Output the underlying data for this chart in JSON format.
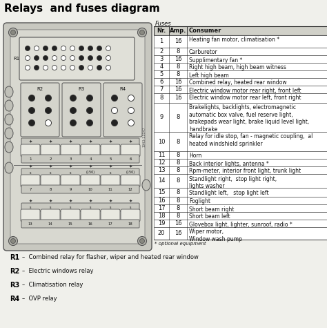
{
  "title": "Relays  and fuses diagram",
  "title_fontsize": 11,
  "bg_color": "#f0f0eb",
  "table_header": [
    "Nr.",
    "Amp.",
    "Consumer"
  ],
  "fuses_label": "Fuses",
  "fuse_rows": [
    [
      "1",
      "16",
      "Heating fan motor, climatisation *"
    ],
    [
      "2",
      "8",
      "Carburetor"
    ],
    [
      "3",
      "16",
      "Supplimentary fan *"
    ],
    [
      "4",
      "8",
      "Right high beam, high beam witness"
    ],
    [
      "5",
      "8",
      "Left high beam"
    ],
    [
      "6",
      "16",
      "Combined relay, heated rear window"
    ],
    [
      "7",
      "16",
      "Electric window motor rear right, front left"
    ],
    [
      "8",
      "16",
      "Electric window motor rear left, front right"
    ],
    [
      "9",
      "8",
      "Brakelights, backlights, electromagnetic\nautomatic box valve, fuel reserve light,\nbrakepads wear light, brake liquid level light,\nhandbrake"
    ],
    [
      "10",
      "8",
      "Relay for idle stop, fan - magnetic coupling,  al\nheated windshield sprinkler"
    ],
    [
      "11",
      "8",
      "Horn"
    ],
    [
      "12",
      "8",
      "Back interior lights, antenna *"
    ],
    [
      "13",
      "8",
      "Rpm-meter, interior front light, trunk light"
    ],
    [
      "14",
      "8",
      "Standlight right,  stop light right,\nlights washer"
    ],
    [
      "15",
      "8",
      "Standlight left,   stop light left"
    ],
    [
      "16",
      "8",
      "Foglight"
    ],
    [
      "17",
      "8",
      "Short beam right"
    ],
    [
      "18",
      "8",
      "Short beam left"
    ],
    [
      "19",
      "16",
      "Glovebox light, lighter, sunroof, radio *"
    ],
    [
      "20",
      "16",
      "Wiper motor,\nWindow wash pump"
    ]
  ],
  "relay_labels": [
    [
      "R1",
      "Combined relay for flasher, wiper and heated rear window"
    ],
    [
      "R2",
      "Electric windows relay"
    ],
    [
      "R3",
      "Climatisation relay"
    ],
    [
      "R4",
      "OVP relay"
    ]
  ],
  "optional_note": "* optional equipment",
  "line_color": "#333333",
  "text_color": "#111111",
  "diagram_bg": "#dcdcd4",
  "fuse_bg": "#e4e4dc"
}
